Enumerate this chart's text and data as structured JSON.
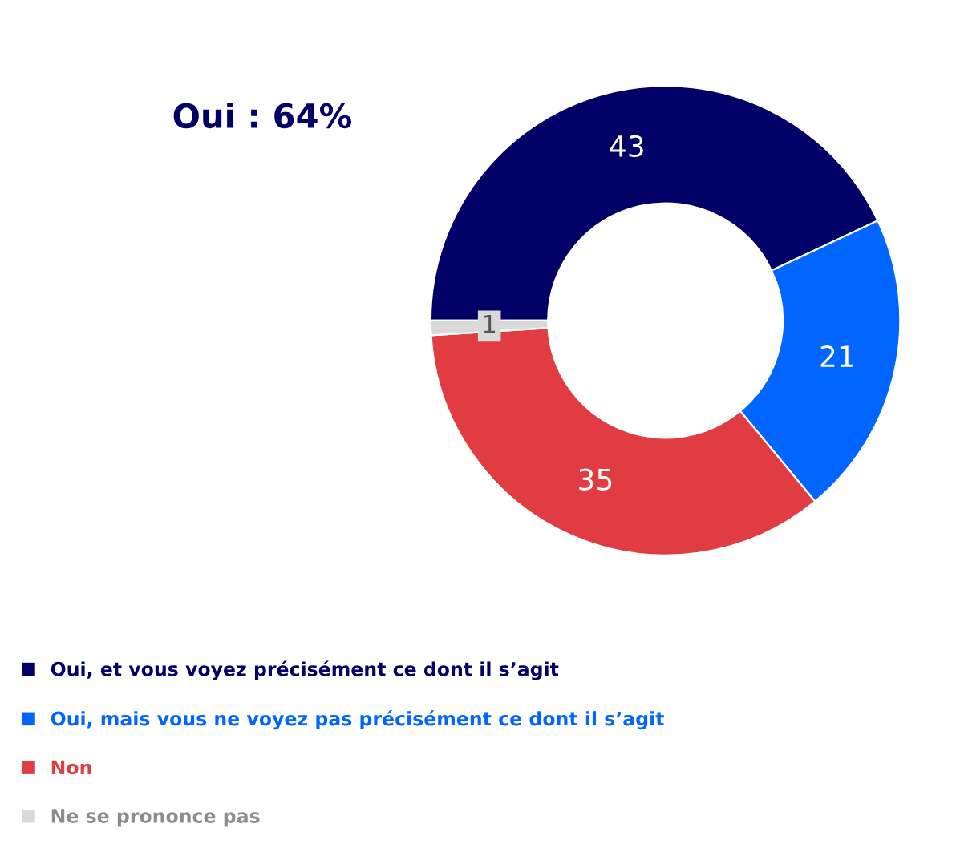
{
  "chart_data": {
    "type": "donut",
    "categories": [
      "Oui, et vous voyez précisément ce dont il s’agit",
      "Oui, mais vous ne voyez pas précisément ce dont il s’agit",
      "Non",
      "Ne se prononce pas"
    ],
    "values": [
      43,
      21,
      35,
      1
    ],
    "colors": [
      "#000066",
      "#0066ff",
      "#e03c41",
      "#d9d9d9"
    ],
    "data_labels": true,
    "legend": "bottom left",
    "annotations": [
      "Oui : 64%"
    ]
  }
}
